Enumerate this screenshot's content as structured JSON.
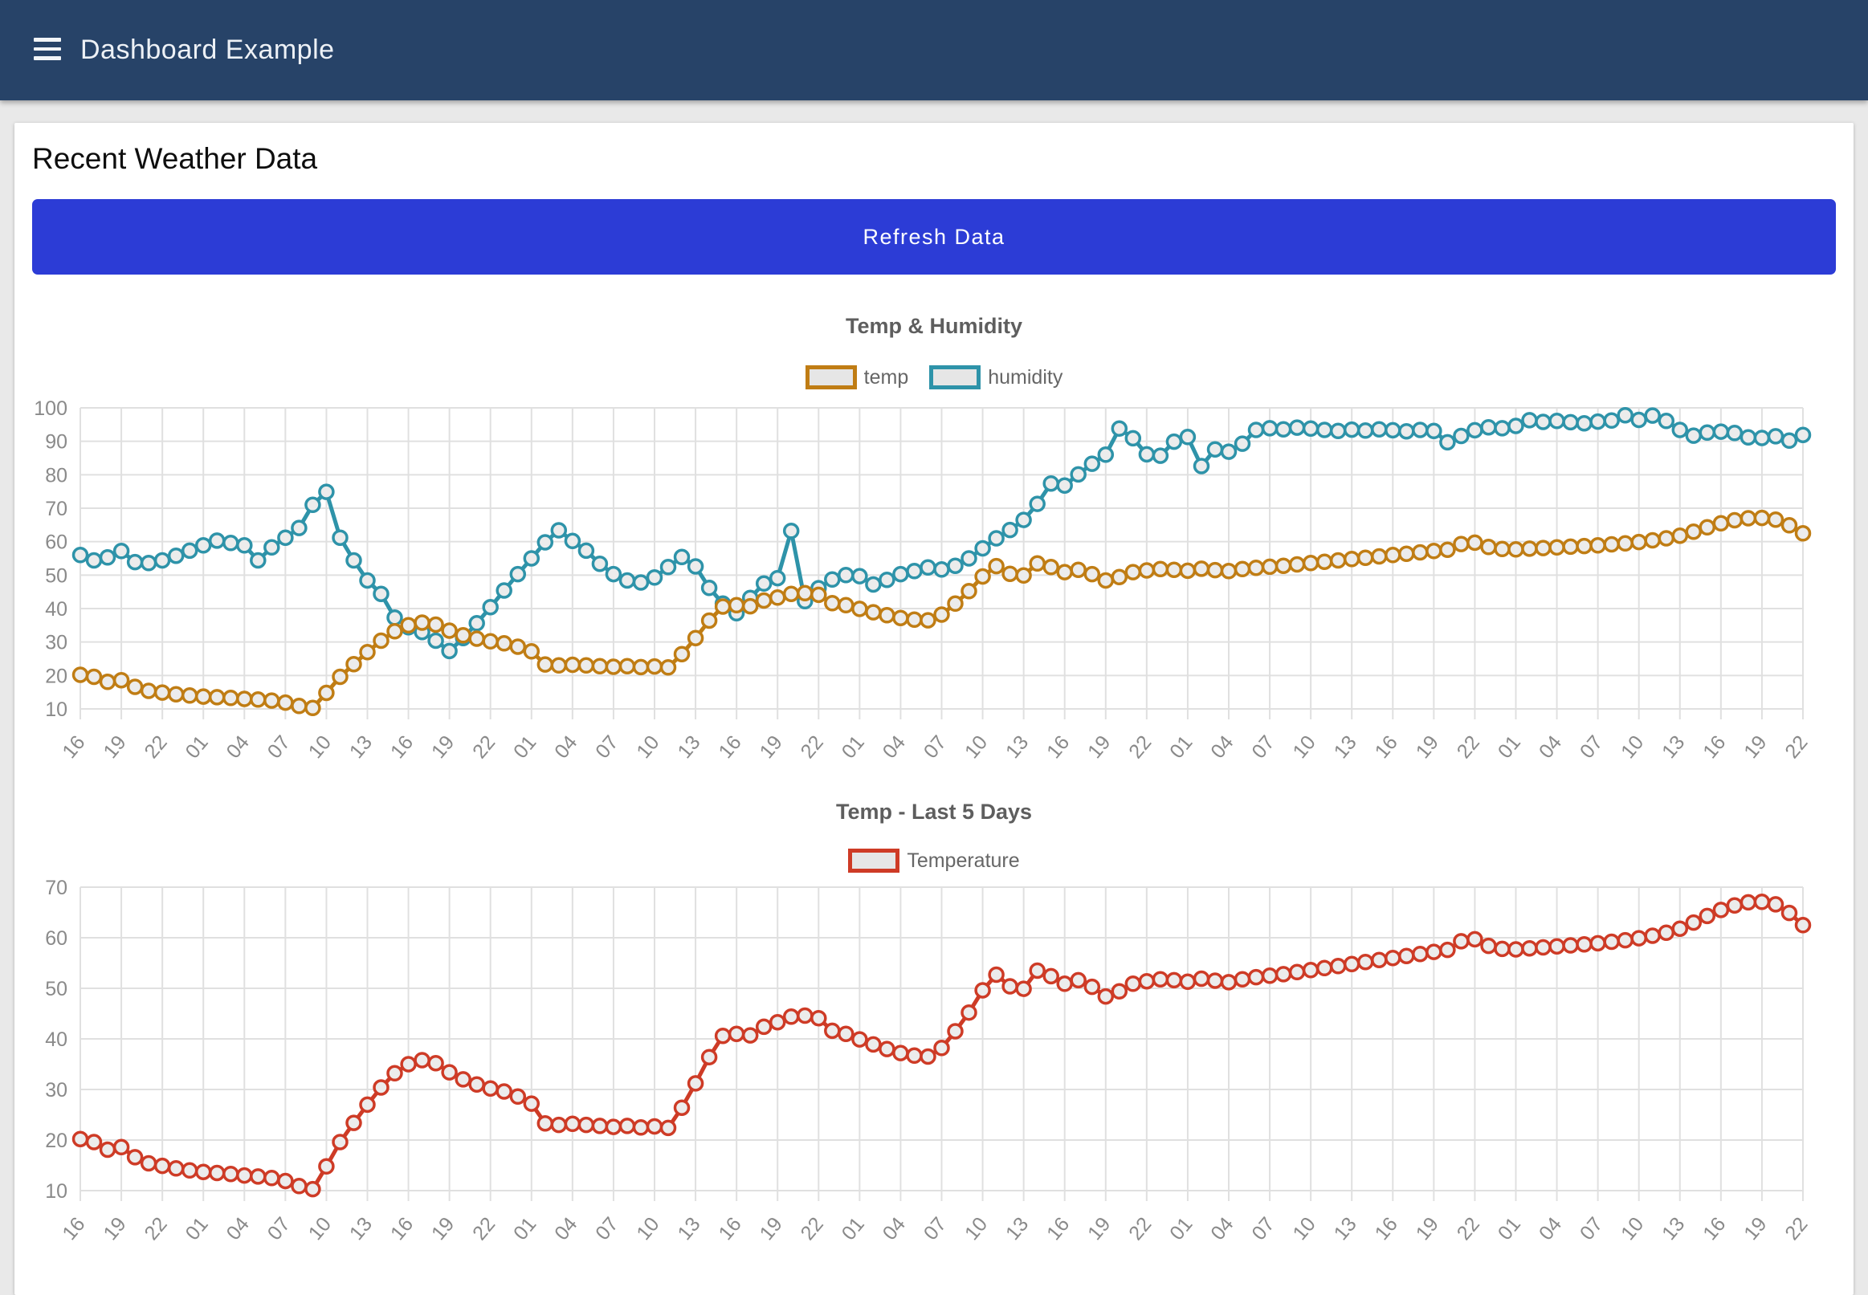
{
  "navbar": {
    "title": "Dashboard Example"
  },
  "page": {
    "heading": "Recent Weather Data",
    "refresh_button_label": "Refresh Data"
  },
  "colors": {
    "navbar_bg": "#274368",
    "button_bg": "#2C3CD6",
    "temp_orange": "#C07D14",
    "humidity_teal": "#2E93A9",
    "temperature_red": "#CE3B26",
    "marker_fill": "#ECECEC",
    "grid": "#E0E0E0",
    "tick_text": "#8A8A8A",
    "title_text": "#5E5E5E"
  },
  "chart_data": [
    {
      "type": "line",
      "title": "Temp & Humidity",
      "legend_position": "top",
      "grid": true,
      "ylim": [
        10,
        100
      ],
      "ytick_step": 10,
      "points_per_label": 3,
      "x_labels": [
        "16",
        "19",
        "22",
        "01",
        "04",
        "07",
        "10",
        "13",
        "16",
        "19",
        "22",
        "01",
        "04",
        "07",
        "10",
        "13",
        "16",
        "19",
        "22",
        "01",
        "04",
        "07",
        "10",
        "13",
        "16",
        "19",
        "22",
        "01",
        "04",
        "07",
        "10",
        "13",
        "16",
        "19",
        "22",
        "01",
        "04",
        "07",
        "10",
        "13",
        "16",
        "19",
        "22"
      ],
      "series": [
        {
          "name": "temp",
          "color": "#C07D14",
          "values": [
            20.2,
            19.6,
            18.1,
            18.6,
            16.6,
            15.4,
            14.9,
            14.4,
            14.0,
            13.7,
            13.5,
            13.3,
            13.0,
            12.8,
            12.5,
            11.9,
            10.9,
            10.3,
            14.8,
            19.6,
            23.4,
            27.0,
            30.4,
            33.2,
            35.0,
            35.8,
            35.2,
            33.4,
            32.0,
            31.0,
            30.2,
            29.6,
            28.6,
            27.2,
            23.3,
            23.0,
            23.2,
            23.0,
            22.8,
            22.6,
            22.8,
            22.5,
            22.7,
            22.4,
            26.4,
            31.2,
            36.4,
            40.6,
            41.0,
            40.7,
            42.4,
            43.3,
            44.4,
            44.6,
            44.1,
            41.6,
            41.0,
            39.9,
            38.9,
            38.0,
            37.2,
            36.7,
            36.5,
            38.2,
            41.5,
            45.2,
            49.6,
            52.7,
            50.4,
            49.9,
            53.5,
            52.4,
            50.9,
            51.6,
            50.3,
            48.4,
            49.4,
            50.9,
            51.4,
            51.8,
            51.6,
            51.3,
            51.9,
            51.5,
            51.2,
            51.8,
            52.2,
            52.5,
            52.8,
            53.2,
            53.6,
            54.0,
            54.4,
            54.8,
            55.2,
            55.6,
            56.0,
            56.4,
            56.8,
            57.2,
            57.6,
            59.3,
            59.7,
            58.4,
            57.8,
            57.7,
            57.9,
            58.1,
            58.3,
            58.5,
            58.7,
            58.9,
            59.2,
            59.5,
            59.9,
            60.4,
            61.0,
            61.8,
            63.0,
            64.3,
            65.5,
            66.4,
            67.0,
            67.1,
            66.6,
            64.9,
            62.5
          ]
        },
        {
          "name": "humidity",
          "color": "#2E93A9",
          "values": [
            56.0,
            54.4,
            55.3,
            57.2,
            53.9,
            53.6,
            54.4,
            55.8,
            57.3,
            58.9,
            60.3,
            59.6,
            58.9,
            54.4,
            58.3,
            61.2,
            64.1,
            71.0,
            74.9,
            61.2,
            54.4,
            48.4,
            44.4,
            37.3,
            34.4,
            33.0,
            30.4,
            27.3,
            31.2,
            35.6,
            40.4,
            45.4,
            50.3,
            55.0,
            59.8,
            63.4,
            60.2,
            57.3,
            53.4,
            50.3,
            48.4,
            47.8,
            49.3,
            52.4,
            55.4,
            52.6,
            46.2,
            41.5,
            38.6,
            43.2,
            47.5,
            49.1,
            63.2,
            42.2,
            46.1,
            48.7,
            50.0,
            49.7,
            47.2,
            48.6,
            50.3,
            51.2,
            52.3,
            51.7,
            52.8,
            55.0,
            58.0,
            61.0,
            63.5,
            66.5,
            71.3,
            77.4,
            76.8,
            80.1,
            83.3,
            86.0,
            93.8,
            90.9,
            86.1,
            85.7,
            89.9,
            91.3,
            82.6,
            87.6,
            86.9,
            89.3,
            93.4,
            93.9,
            93.6,
            94.1,
            93.8,
            93.4,
            93.1,
            93.5,
            93.2,
            93.6,
            93.3,
            93.0,
            93.4,
            93.1,
            89.7,
            91.6,
            93.3,
            94.2,
            93.9,
            94.6,
            96.3,
            95.8,
            96.1,
            95.7,
            95.4,
            95.9,
            96.2,
            97.8,
            96.4,
            97.7,
            96.1,
            93.4,
            91.7,
            92.6,
            92.9,
            92.5,
            91.2,
            91.0,
            91.5,
            90.2,
            91.9
          ]
        }
      ]
    },
    {
      "type": "line",
      "title": "Temp - Last 5 Days",
      "legend_position": "top",
      "grid": true,
      "ylim": [
        10,
        70
      ],
      "ytick_step": 10,
      "points_per_label": 3,
      "x_labels": [
        "16",
        "19",
        "22",
        "01",
        "04",
        "07",
        "10",
        "13",
        "16",
        "19",
        "22",
        "01",
        "04",
        "07",
        "10",
        "13",
        "16",
        "19",
        "22",
        "01",
        "04",
        "07",
        "10",
        "13",
        "16",
        "19",
        "22",
        "01",
        "04",
        "07",
        "10",
        "13",
        "16",
        "19",
        "22",
        "01",
        "04",
        "07",
        "10",
        "13",
        "16",
        "19",
        "22"
      ],
      "series": [
        {
          "name": "Temperature",
          "color": "#CE3B26",
          "values": [
            20.2,
            19.6,
            18.1,
            18.6,
            16.6,
            15.4,
            14.9,
            14.4,
            14.0,
            13.7,
            13.5,
            13.3,
            13.0,
            12.8,
            12.5,
            11.9,
            10.9,
            10.3,
            14.8,
            19.6,
            23.4,
            27.0,
            30.4,
            33.2,
            35.0,
            35.8,
            35.2,
            33.4,
            32.0,
            31.0,
            30.2,
            29.6,
            28.6,
            27.2,
            23.3,
            23.0,
            23.2,
            23.0,
            22.8,
            22.6,
            22.8,
            22.5,
            22.7,
            22.4,
            26.4,
            31.2,
            36.4,
            40.6,
            41.0,
            40.7,
            42.4,
            43.3,
            44.4,
            44.6,
            44.1,
            41.6,
            41.0,
            39.9,
            38.9,
            38.0,
            37.2,
            36.7,
            36.5,
            38.2,
            41.5,
            45.2,
            49.6,
            52.7,
            50.4,
            49.9,
            53.5,
            52.4,
            50.9,
            51.6,
            50.3,
            48.4,
            49.4,
            50.9,
            51.4,
            51.8,
            51.6,
            51.3,
            51.9,
            51.5,
            51.2,
            51.8,
            52.2,
            52.5,
            52.8,
            53.2,
            53.6,
            54.0,
            54.4,
            54.8,
            55.2,
            55.6,
            56.0,
            56.4,
            56.8,
            57.2,
            57.6,
            59.3,
            59.7,
            58.4,
            57.8,
            57.7,
            57.9,
            58.1,
            58.3,
            58.5,
            58.7,
            58.9,
            59.2,
            59.5,
            59.9,
            60.4,
            61.0,
            61.8,
            63.0,
            64.3,
            65.5,
            66.4,
            67.0,
            67.1,
            66.6,
            64.9,
            62.5
          ]
        }
      ]
    }
  ]
}
